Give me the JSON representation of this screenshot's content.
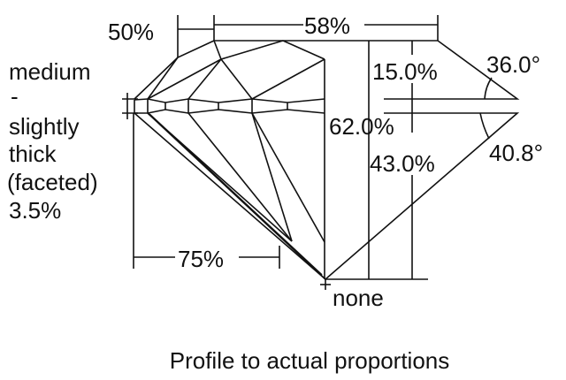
{
  "labels": {
    "star_length": "50%",
    "table": "58%",
    "girdle_lines": [
      "medium",
      "-",
      "slightly",
      "thick",
      "(faceted)",
      "3.5%"
    ],
    "crown_height": "15.0%",
    "crown_angle": "36.0°",
    "total_depth": "62.0%",
    "pavilion_angle": "40.8°",
    "pavilion_depth": "43.0%",
    "lower_half": "75%",
    "culet": "none"
  },
  "caption": "Profile to actual proportions",
  "colors": {
    "line": "#111111",
    "background": "#ffffff"
  }
}
